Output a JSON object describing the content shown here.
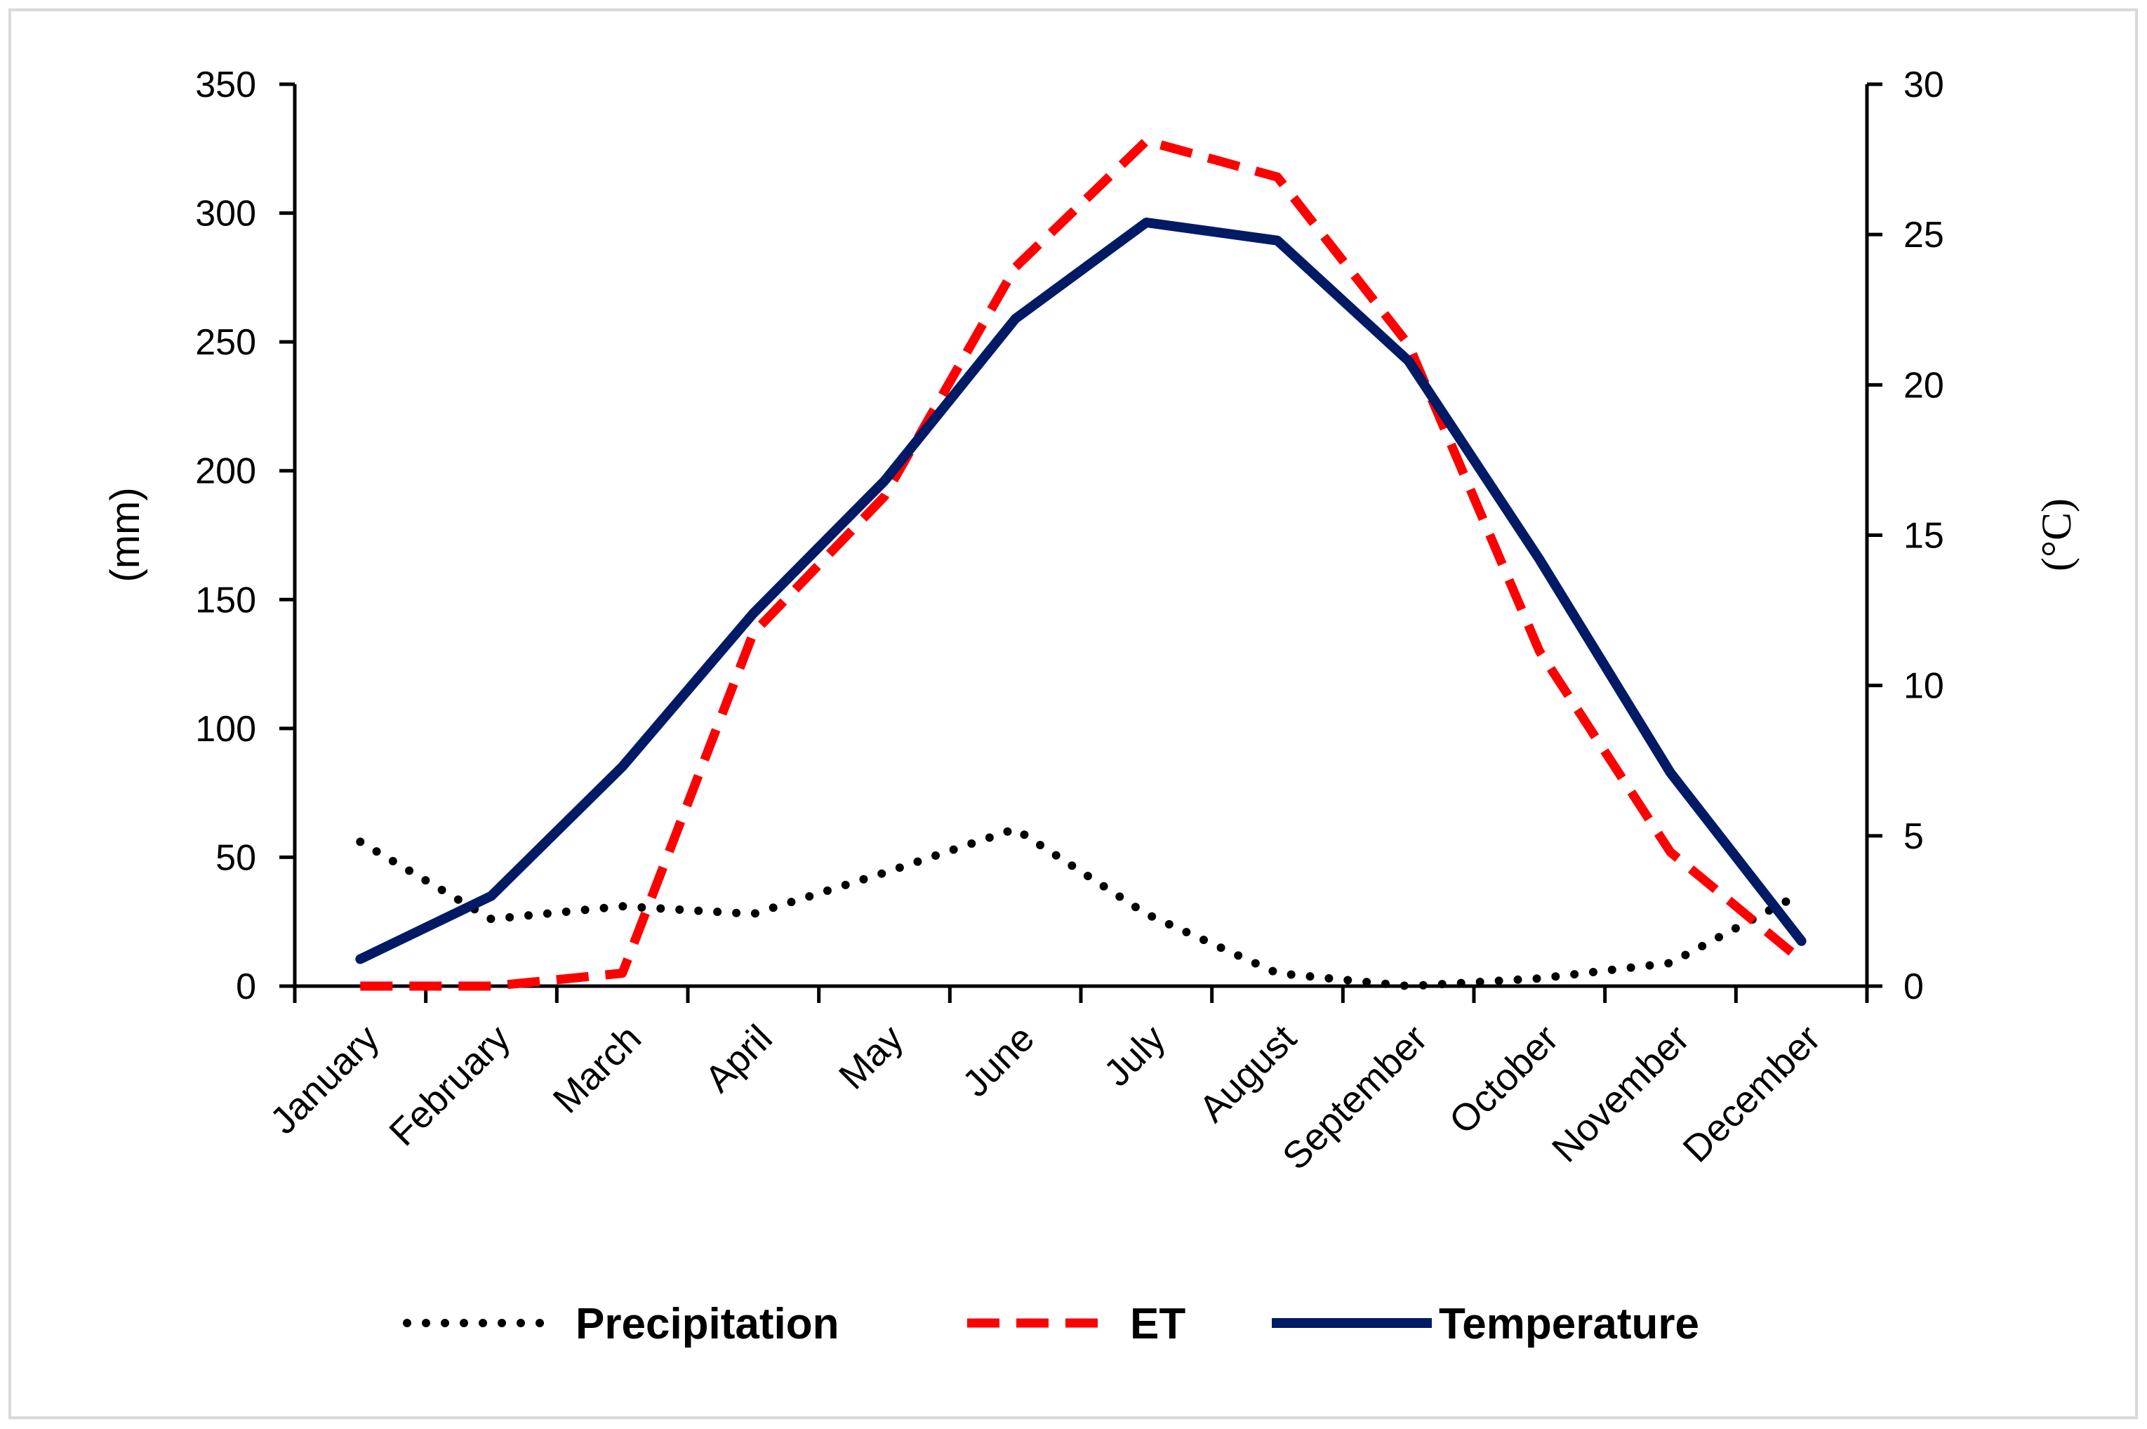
{
  "chart_data": {
    "type": "line",
    "categories": [
      "January",
      "February",
      "March",
      "April",
      "May",
      "June",
      "July",
      "August",
      "September",
      "October",
      "November",
      "December"
    ],
    "y_left": {
      "label": "(mm)",
      "min": 0,
      "max": 350,
      "ticks": [
        "0",
        "50",
        "100",
        "150",
        "200",
        "250",
        "300",
        "350"
      ]
    },
    "y_right": {
      "label": "(°C)",
      "min": 0,
      "max": 30,
      "ticks": [
        "0",
        "5",
        "10",
        "15",
        "20",
        "25",
        "30"
      ]
    },
    "series": [
      {
        "name": "Precipitation",
        "axis": "left",
        "style": "dotted",
        "color": "#000000",
        "values": [
          56,
          26,
          31,
          28,
          44,
          61,
          28,
          5,
          0,
          3,
          9,
          36
        ]
      },
      {
        "name": "ET",
        "axis": "left",
        "style": "dashed",
        "color": "#ff0000",
        "values": [
          0,
          0,
          5,
          137,
          190,
          279,
          328,
          314,
          249,
          130,
          52,
          10
        ]
      },
      {
        "name": "Temperature",
        "axis": "right",
        "style": "solid",
        "color": "#001a66",
        "values": [
          0.9,
          3.0,
          7.3,
          12.4,
          16.8,
          22.2,
          25.4,
          24.8,
          20.8,
          14.2,
          7.1,
          1.5
        ]
      }
    ],
    "legend": {
      "position": "bottom",
      "entries": [
        "Precipitation",
        "ET",
        "Temperature"
      ]
    }
  }
}
